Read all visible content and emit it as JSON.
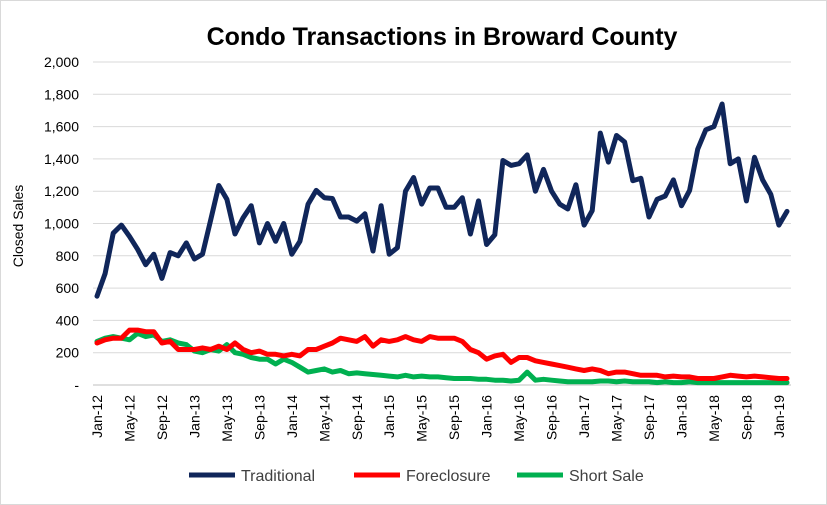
{
  "chart_data": {
    "type": "line",
    "title": "Condo Transactions in Broward County",
    "xlabel": "",
    "ylabel": "Closed Sales",
    "ylim": [
      0,
      2000
    ],
    "yticks": [
      "-",
      "200",
      "400",
      "600",
      "800",
      "1,000",
      "1,200",
      "1,400",
      "1,600",
      "1,800",
      "2,000"
    ],
    "x_tick_labels": [
      "Jan-12",
      "May-12",
      "Sep-12",
      "Jan-13",
      "May-13",
      "Sep-13",
      "Jan-14",
      "May-14",
      "Sep-14",
      "Jan-15",
      "May-15",
      "Sep-15",
      "Jan-16",
      "May-16",
      "Sep-16",
      "Jan-17",
      "May-17",
      "Sep-17",
      "Jan-18",
      "May-18",
      "Sep-18",
      "Jan-19"
    ],
    "x_start": "Jan-12",
    "x_end": "Feb-19",
    "grid": true,
    "legend_position": "bottom",
    "series": [
      {
        "name": "Traditional",
        "color": "#10265a",
        "values": [
          550,
          690,
          940,
          990,
          920,
          840,
          745,
          810,
          660,
          820,
          800,
          880,
          780,
          810,
          1020,
          1235,
          1150,
          935,
          1035,
          1110,
          880,
          1000,
          890,
          1000,
          810,
          890,
          1120,
          1205,
          1160,
          1155,
          1040,
          1040,
          1015,
          1060,
          830,
          1110,
          810,
          850,
          1200,
          1285,
          1120,
          1220,
          1220,
          1100,
          1100,
          1160,
          935,
          1140,
          870,
          930,
          1390,
          1360,
          1370,
          1425,
          1200,
          1335,
          1200,
          1120,
          1090,
          1240,
          990,
          1080,
          1560,
          1380,
          1545,
          1505,
          1265,
          1280,
          1040,
          1150,
          1170,
          1270,
          1110,
          1205,
          1460,
          1580,
          1600,
          1740,
          1370,
          1400,
          1140,
          1410,
          1270,
          1180,
          990,
          1075
        ]
      },
      {
        "name": "Foreclosure",
        "color": "#ff0000",
        "values": [
          260,
          280,
          290,
          290,
          340,
          340,
          330,
          330,
          260,
          270,
          220,
          220,
          220,
          230,
          220,
          240,
          220,
          260,
          220,
          200,
          210,
          190,
          190,
          180,
          190,
          180,
          220,
          220,
          240,
          260,
          290,
          280,
          270,
          300,
          240,
          280,
          270,
          280,
          300,
          280,
          270,
          300,
          290,
          290,
          290,
          270,
          220,
          200,
          160,
          180,
          190,
          140,
          170,
          170,
          150,
          140,
          130,
          120,
          110,
          100,
          90,
          100,
          90,
          70,
          80,
          80,
          70,
          60,
          60,
          60,
          50,
          55,
          50,
          50,
          40,
          40,
          40,
          50,
          60,
          55,
          50,
          55,
          50,
          45,
          40,
          40
        ]
      },
      {
        "name": "Short Sale",
        "color": "#00b050",
        "values": [
          270,
          290,
          300,
          290,
          280,
          320,
          300,
          310,
          270,
          280,
          260,
          250,
          210,
          200,
          220,
          210,
          250,
          200,
          190,
          170,
          160,
          160,
          130,
          160,
          140,
          110,
          80,
          90,
          100,
          80,
          90,
          70,
          75,
          70,
          65,
          60,
          55,
          50,
          60,
          50,
          55,
          50,
          50,
          45,
          40,
          40,
          40,
          35,
          35,
          30,
          30,
          25,
          30,
          80,
          30,
          35,
          30,
          25,
          20,
          20,
          20,
          20,
          25,
          25,
          20,
          25,
          20,
          20,
          20,
          15,
          20,
          15,
          15,
          20,
          15,
          15,
          15,
          15,
          15,
          15,
          15,
          15,
          15,
          15,
          15,
          15
        ]
      }
    ]
  }
}
